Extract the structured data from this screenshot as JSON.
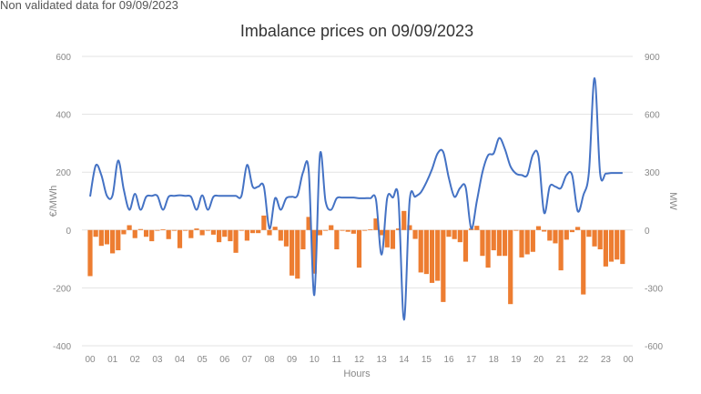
{
  "note": "Non validated data for 09/09/2023",
  "chart_data": {
    "type": "bar+line",
    "title": "Imbalance prices on 09/09/2023",
    "xlabel": "Hours",
    "ylabel_left": "€/MWh",
    "ylabel_right": "MW",
    "ylim_left": [
      -400,
      600
    ],
    "ylim_right": [
      -600,
      900
    ],
    "yticks_left": [
      "600",
      "400",
      "200",
      "0",
      "-200",
      "-400"
    ],
    "yticks_right": [
      "900",
      "600",
      "300",
      "0",
      "-300",
      "-600"
    ],
    "xticks": [
      "00",
      "01",
      "02",
      "03",
      "04",
      "05",
      "06",
      "07",
      "08",
      "09",
      "10",
      "11",
      "12",
      "13",
      "14",
      "15",
      "16",
      "17",
      "18",
      "19",
      "20",
      "21",
      "22",
      "23",
      "00"
    ],
    "grid": true,
    "x_resolution": "15 min",
    "series": [
      {
        "type": "bar",
        "axis": "right",
        "color": "#ed7d31",
        "values": [
          -239,
          -35,
          -82,
          -74,
          -121,
          -105,
          -22,
          25,
          -42,
          5,
          -35,
          -58,
          -3,
          3,
          -47,
          0,
          -94,
          0,
          -42,
          8,
          -27,
          0,
          -24,
          -63,
          -35,
          -58,
          -118,
          0,
          -55,
          -16,
          -16,
          75,
          -27,
          17,
          -55,
          -85,
          -236,
          -252,
          -100,
          68,
          -226,
          -27,
          0,
          25,
          -100,
          0,
          -9,
          -19,
          -195,
          -3,
          3,
          60,
          -27,
          -90,
          -98,
          8,
          99,
          25,
          -46,
          -220,
          -228,
          -274,
          -263,
          -373,
          -35,
          -47,
          -63,
          -164,
          8,
          22,
          -134,
          -195,
          -105,
          -134,
          -134,
          -384,
          0,
          -142,
          -126,
          -113,
          20,
          -8,
          -55,
          -69,
          -209,
          -50,
          -11,
          16,
          -334,
          -35,
          -85,
          -100,
          -189,
          -164,
          -153,
          -176
        ]
      },
      {
        "type": "line",
        "axis": "left",
        "color": "#4472c4",
        "values": [
          116,
          223,
          190,
          118,
          120,
          240,
          140,
          70,
          125,
          70,
          115,
          118,
          118,
          70,
          115,
          118,
          120,
          118,
          115,
          70,
          120,
          70,
          115,
          118,
          118,
          118,
          118,
          118,
          225,
          150,
          150,
          150,
          5,
          110,
          70,
          110,
          115,
          120,
          200,
          205,
          -225,
          260,
          100,
          70,
          110,
          112,
          112,
          112,
          110,
          110,
          110,
          105,
          -85,
          110,
          112,
          110,
          -310,
          100,
          115,
          130,
          165,
          210,
          265,
          270,
          180,
          115,
          145,
          148,
          5,
          100,
          200,
          258,
          265,
          318,
          280,
          220,
          195,
          190,
          190,
          260,
          255,
          60,
          150,
          150,
          145,
          190,
          190,
          65,
          120,
          200,
          525,
          195,
          195,
          197,
          197,
          197
        ]
      }
    ]
  }
}
